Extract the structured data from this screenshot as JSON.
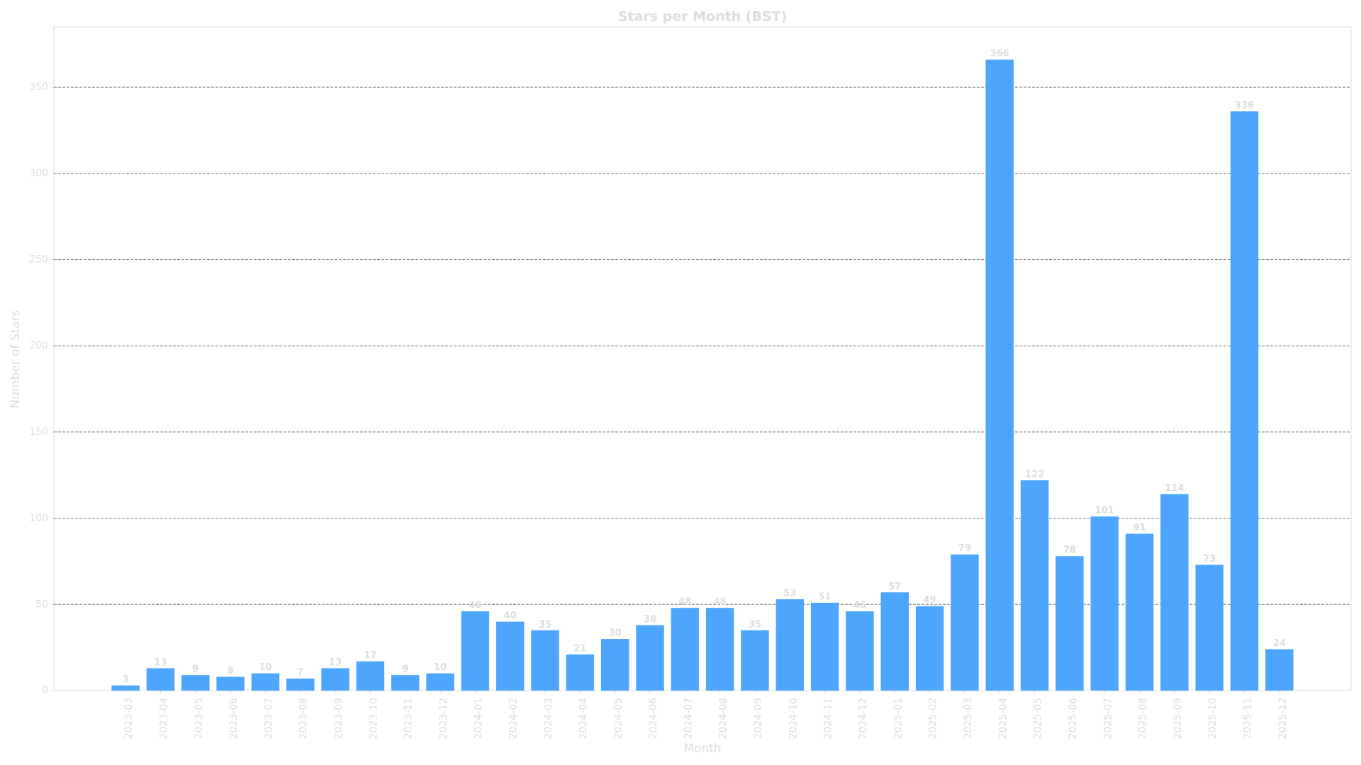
{
  "chart_data": {
    "type": "bar",
    "title": "Stars per Month (BST)",
    "x_label": "Month",
    "y_label": "Number of Stars",
    "categories": [
      "2023-03",
      "2023-04",
      "2023-05",
      "2023-06",
      "2023-07",
      "2023-08",
      "2023-09",
      "2023-10",
      "2023-11",
      "2023-12",
      "2024-01",
      "2024-02",
      "2024-03",
      "2024-04",
      "2024-05",
      "2024-06",
      "2024-07",
      "2024-08",
      "2024-09",
      "2024-10",
      "2024-11",
      "2024-12",
      "2025-01",
      "2025-02",
      "2025-03",
      "2025-04",
      "2025-05",
      "2025-06",
      "2025-07",
      "2025-08",
      "2025-09",
      "2025-10",
      "2025-11",
      "2025-12"
    ],
    "values": [
      3,
      13,
      9,
      8,
      10,
      7,
      13,
      17,
      9,
      10,
      46,
      40,
      35,
      21,
      30,
      38,
      48,
      48,
      35,
      53,
      51,
      46,
      57,
      49,
      79,
      366,
      122,
      78,
      101,
      91,
      114,
      73,
      336,
      24
    ],
    "color": "#4ea5fe",
    "ylim": [
      0,
      385
    ],
    "yticks": [
      0,
      50,
      100,
      150,
      200,
      250,
      300,
      350
    ],
    "grid": true
  }
}
